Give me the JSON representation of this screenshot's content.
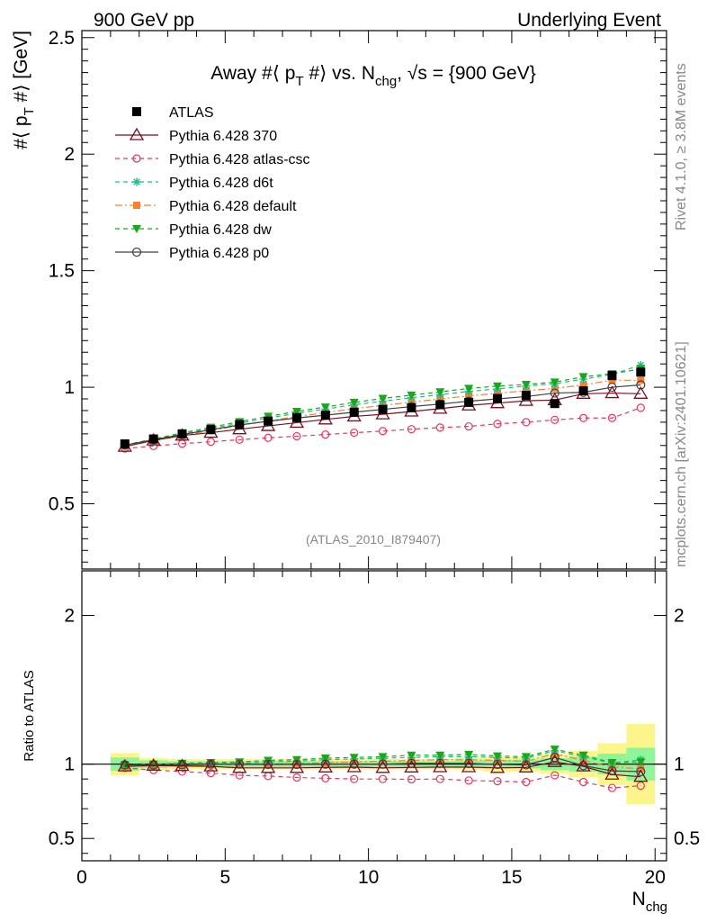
{
  "header": {
    "left": "900 GeV pp",
    "right": "Underlying Event"
  },
  "side_labels": {
    "rivet": "Rivet 4.1.0, ≥ 3.8M events",
    "mcplots": "mcplots.cern.ch [arXiv:2401.10621]"
  },
  "colors": {
    "ATLAS": "#000000",
    "p370": "#7a0f1e",
    "atlas_csc": "#e8375a",
    "d6t": "#19c08f",
    "default": "#f58231",
    "dw": "#1aa81a",
    "p0": "#404040",
    "band_green": "#8ff59a",
    "band_yellow": "#fbf58c"
  },
  "chart_data": [
    {
      "type": "line",
      "panel": "main",
      "title_parts": {
        "a": "Away #⟨ p",
        "a_sub": "T",
        "b": " #⟩ vs. N",
        "b_sub": "chg",
        "c": ", √s = {900 GeV}"
      },
      "ylabel_parts": {
        "a": "#⟨ p",
        "sub": "T",
        "b": " #⟩ [GeV]"
      },
      "xlabel": "N",
      "xlabel_sub": "chg",
      "watermark": "(ATLAS_2010_I879407)",
      "xlim": [
        0,
        20.4
      ],
      "ylim": [
        0.22,
        2.53
      ],
      "x_ticks": [
        0,
        5,
        10,
        15,
        20
      ],
      "x_tick_labels": [
        "0",
        "5",
        "10",
        "15",
        "20"
      ],
      "y_ticks": [
        0.5,
        1,
        1.5,
        2,
        2.5
      ],
      "y_tick_labels": [
        "0.5",
        "1",
        "1.5",
        "2",
        "2.5"
      ],
      "x": [
        1.5,
        2.5,
        3.5,
        4.5,
        5.5,
        6.5,
        7.5,
        8.5,
        9.5,
        10.5,
        11.5,
        12.5,
        13.5,
        14.5,
        15.5,
        16.5,
        17.5,
        18.5,
        19.5
      ],
      "series": [
        {
          "key": "ATLAS",
          "name": "ATLAS",
          "style": "data",
          "values": [
            0.757,
            0.778,
            0.8,
            0.818,
            0.84,
            0.855,
            0.87,
            0.88,
            0.893,
            0.905,
            0.912,
            0.925,
            0.935,
            0.952,
            0.965,
            0.93,
            0.985,
            1.05,
            1.065
          ]
        },
        {
          "key": "p370",
          "name": "Pythia 6.428 370",
          "style": "solid",
          "values": [
            0.745,
            0.772,
            0.793,
            0.805,
            0.82,
            0.834,
            0.848,
            0.862,
            0.875,
            0.884,
            0.896,
            0.908,
            0.922,
            0.932,
            0.942,
            0.945,
            0.972,
            0.975,
            0.972
          ]
        },
        {
          "key": "atlas_csc",
          "name": "Pythia 6.428 atlas-csc",
          "style": "dashed",
          "values": [
            0.737,
            0.748,
            0.758,
            0.766,
            0.775,
            0.783,
            0.79,
            0.797,
            0.805,
            0.812,
            0.82,
            0.827,
            0.832,
            0.843,
            0.85,
            0.86,
            0.868,
            0.868,
            0.912
          ]
        },
        {
          "key": "d6t",
          "name": "Pythia 6.428 d6t",
          "style": "dashed",
          "values": [
            0.75,
            0.774,
            0.8,
            0.822,
            0.845,
            0.868,
            0.888,
            0.906,
            0.925,
            0.94,
            0.955,
            0.968,
            0.982,
            0.993,
            1.005,
            1.015,
            1.035,
            1.055,
            1.095
          ]
        },
        {
          "key": "default",
          "name": "Pythia 6.428 default",
          "style": "dashdot",
          "values": [
            0.747,
            0.77,
            0.793,
            0.814,
            0.836,
            0.856,
            0.874,
            0.891,
            0.908,
            0.922,
            0.936,
            0.95,
            0.963,
            0.974,
            0.985,
            0.995,
            1.01,
            1.03,
            1.03
          ]
        },
        {
          "key": "dw",
          "name": "Pythia 6.428 dw",
          "style": "dashed",
          "values": [
            0.752,
            0.778,
            0.804,
            0.828,
            0.852,
            0.875,
            0.896,
            0.915,
            0.935,
            0.952,
            0.966,
            0.98,
            0.995,
            1.005,
            1.012,
            1.022,
            1.045,
            1.058,
            1.078
          ]
        },
        {
          "key": "p0",
          "name": "Pythia 6.428 p0",
          "style": "solid",
          "values": [
            0.752,
            0.775,
            0.797,
            0.818,
            0.838,
            0.854,
            0.868,
            0.88,
            0.893,
            0.905,
            0.917,
            0.928,
            0.94,
            0.95,
            0.96,
            0.975,
            0.978,
            1.0,
            1.01
          ]
        }
      ],
      "legend_position": "top-left"
    },
    {
      "type": "line",
      "panel": "ratio",
      "ylabel": "Ratio to ATLAS",
      "xlim": [
        0,
        20.4
      ],
      "ylim": [
        0.35,
        2.3
      ],
      "y_ticks": [
        0.5,
        1,
        2
      ],
      "y_tick_labels": [
        "0.5",
        "1",
        "2"
      ],
      "x": [
        1.5,
        2.5,
        3.5,
        4.5,
        5.5,
        6.5,
        7.5,
        8.5,
        9.5,
        10.5,
        11.5,
        12.5,
        13.5,
        14.5,
        15.5,
        16.5,
        17.5,
        18.5,
        19.5
      ],
      "bands": {
        "green_halfwidth": [
          0.045,
          0.025,
          0.02,
          0.02,
          0.02,
          0.02,
          0.02,
          0.02,
          0.02,
          0.02,
          0.02,
          0.02,
          0.025,
          0.03,
          0.03,
          0.04,
          0.05,
          0.07,
          0.11
        ],
        "yellow_halfwidth": [
          0.075,
          0.04,
          0.035,
          0.035,
          0.035,
          0.035,
          0.035,
          0.035,
          0.035,
          0.035,
          0.035,
          0.035,
          0.04,
          0.05,
          0.05,
          0.065,
          0.09,
          0.14,
          0.27
        ]
      },
      "series": [
        {
          "key": "p370",
          "values": [
            0.985,
            0.99,
            0.988,
            0.985,
            0.975,
            0.975,
            0.975,
            0.978,
            0.98,
            0.975,
            0.978,
            0.98,
            0.98,
            0.975,
            0.978,
            1.015,
            0.985,
            0.93,
            0.915
          ]
        },
        {
          "key": "atlas_csc",
          "values": [
            0.975,
            0.96,
            0.95,
            0.94,
            0.925,
            0.92,
            0.91,
            0.905,
            0.9,
            0.9,
            0.898,
            0.9,
            0.89,
            0.885,
            0.88,
            0.925,
            0.88,
            0.84,
            0.855
          ]
        },
        {
          "key": "d6t",
          "values": [
            0.99,
            0.995,
            1.0,
            1.005,
            1.005,
            1.015,
            1.02,
            1.03,
            1.035,
            1.04,
            1.045,
            1.05,
            1.05,
            1.045,
            1.04,
            1.09,
            1.05,
            1.005,
            1.03
          ]
        },
        {
          "key": "default",
          "values": [
            0.985,
            0.99,
            0.99,
            0.995,
            0.995,
            1.0,
            1.005,
            1.01,
            1.015,
            1.02,
            1.025,
            1.03,
            1.03,
            1.025,
            1.02,
            1.07,
            1.025,
            0.98,
            0.97
          ]
        },
        {
          "key": "dw",
          "values": [
            0.995,
            1.0,
            1.005,
            1.01,
            1.015,
            1.025,
            1.03,
            1.04,
            1.045,
            1.05,
            1.06,
            1.06,
            1.065,
            1.055,
            1.05,
            1.1,
            1.06,
            1.01,
            1.015
          ]
        },
        {
          "key": "p0",
          "values": [
            0.995,
            0.995,
            0.995,
            1.0,
            1.0,
            0.998,
            0.998,
            1.0,
            1.0,
            1.0,
            1.005,
            1.005,
            1.005,
            0.998,
            0.995,
            1.045,
            0.99,
            0.955,
            0.95
          ]
        }
      ]
    }
  ]
}
